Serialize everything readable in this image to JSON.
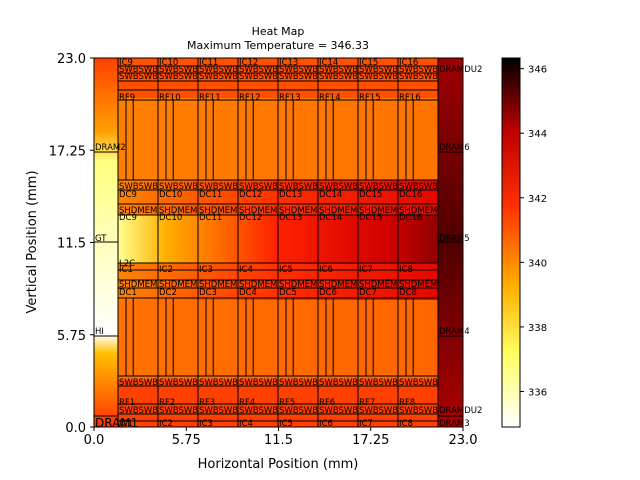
{
  "chart_data": {
    "type": "heatmap",
    "title": "Heat Map",
    "subtitle": "Maximum Temperature = 346.33",
    "xlabel": "Horizontal Position (mm)",
    "ylabel": "Vertical Position (mm)",
    "xlim": [
      0,
      23
    ],
    "ylim": [
      0,
      23
    ],
    "xticks": [
      "0.0",
      "5.75",
      "11.5",
      "17.25",
      "23.0"
    ],
    "yticks": [
      "0.0",
      "5.75",
      "11.5",
      "17.25",
      "23.0"
    ],
    "colorbar": {
      "colormap": "hot_r",
      "vmin": 334.9,
      "vmax": 346.33,
      "ticks": [
        "336",
        "338",
        "340",
        "342",
        "344",
        "346"
      ]
    },
    "die_labels": [
      "DRAM2",
      "GT",
      "L2C",
      "HI",
      "DRAM1",
      "DRAM6",
      "DRAM5",
      "DRAM4",
      "DRAM3",
      "DRAMDU2",
      "DRAMDU2"
    ],
    "core_labels": {
      "ic_top": [
        "IC9",
        "IC10",
        "IC11",
        "IC12",
        "IC13",
        "IC14",
        "IC15",
        "IC16"
      ],
      "rf_top": [
        "RF9",
        "RF10",
        "RF11",
        "RF12",
        "RF13",
        "RF14",
        "RF15",
        "RF16"
      ],
      "dc_top": [
        "DC9",
        "DC10",
        "DC11",
        "DC12",
        "DC13",
        "DC14",
        "DC15",
        "DC16"
      ],
      "ic_mid": [
        "IC1",
        "IC2",
        "IC3",
        "IC4",
        "IC5",
        "IC6",
        "IC7",
        "IC8"
      ],
      "rf_bot": [
        "RF1",
        "RF2",
        "RF3",
        "RF4",
        "RF5",
        "RF6",
        "RF7",
        "RF8"
      ],
      "dc_bot": [
        "DC1",
        "DC2",
        "DC3",
        "DC4",
        "DC5",
        "DC6",
        "DC7",
        "DC8"
      ],
      "shdmem": "SHDMEM",
      "swb": "SWB"
    }
  }
}
